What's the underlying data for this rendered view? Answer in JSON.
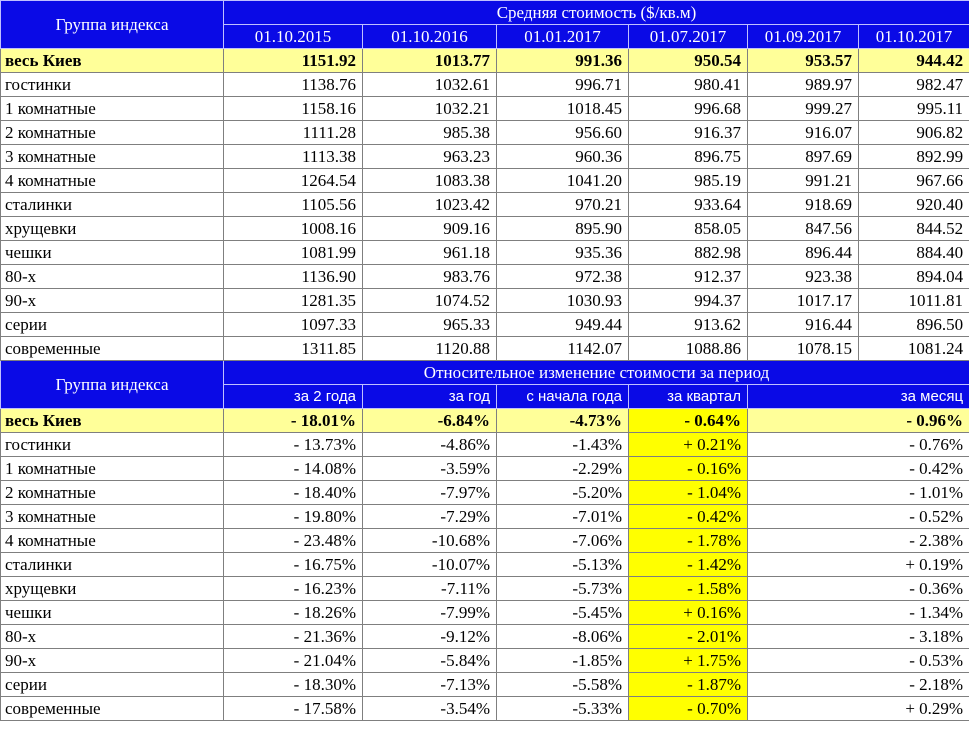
{
  "table1": {
    "group_header": "Группа индекса",
    "section_header": "Средняя стоимость ($/кв.м)",
    "columns": [
      "01.10.2015",
      "01.10.2016",
      "01.01.2017",
      "01.07.2017",
      "01.09.2017",
      "01.10.2017"
    ],
    "rows": [
      {
        "label": "весь Киев",
        "values": [
          "1151.92",
          "1013.77",
          "991.36",
          "950.54",
          "953.57",
          "944.42"
        ]
      },
      {
        "label": "гостинки",
        "values": [
          "1138.76",
          "1032.61",
          "996.71",
          "980.41",
          "989.97",
          "982.47"
        ]
      },
      {
        "label": "1 комнатные",
        "values": [
          "1158.16",
          "1032.21",
          "1018.45",
          "996.68",
          "999.27",
          "995.11"
        ]
      },
      {
        "label": "2 комнатные",
        "values": [
          "1111.28",
          "985.38",
          "956.60",
          "916.37",
          "916.07",
          "906.82"
        ]
      },
      {
        "label": "3 комнатные",
        "values": [
          "1113.38",
          "963.23",
          "960.36",
          "896.75",
          "897.69",
          "892.99"
        ]
      },
      {
        "label": "4 комнатные",
        "values": [
          "1264.54",
          "1083.38",
          "1041.20",
          "985.19",
          "991.21",
          "967.66"
        ]
      },
      {
        "label": "сталинки",
        "values": [
          "1105.56",
          "1023.42",
          "970.21",
          "933.64",
          "918.69",
          "920.40"
        ]
      },
      {
        "label": "хрущевки",
        "values": [
          "1008.16",
          "909.16",
          "895.90",
          "858.05",
          "847.56",
          "844.52"
        ]
      },
      {
        "label": "чешки",
        "values": [
          "1081.99",
          "961.18",
          "935.36",
          "882.98",
          "896.44",
          "884.40"
        ]
      },
      {
        "label": "80-х",
        "values": [
          "1136.90",
          "983.76",
          "972.38",
          "912.37",
          "923.38",
          "894.04"
        ]
      },
      {
        "label": "90-х",
        "values": [
          "1281.35",
          "1074.52",
          "1030.93",
          "994.37",
          "1017.17",
          "1011.81"
        ]
      },
      {
        "label": "серии",
        "values": [
          "1097.33",
          "965.33",
          "949.44",
          "913.62",
          "916.44",
          "896.50"
        ]
      },
      {
        "label": "современные",
        "values": [
          "1311.85",
          "1120.88",
          "1142.07",
          "1088.86",
          "1078.15",
          "1081.24"
        ]
      }
    ]
  },
  "table2": {
    "group_header": "Группа индекса",
    "section_header": "Относительное изменение стоимости за период",
    "columns": [
      "за 2 года",
      "за год",
      "с начала года",
      "за квартал",
      "за месяц"
    ],
    "highlight_color": "#ffff00",
    "rows": [
      {
        "label": "весь Киев",
        "values": [
          "- 18.01%",
          "-6.84%",
          "-4.73%",
          "- 0.64%",
          "- 0.96%"
        ]
      },
      {
        "label": "гостинки",
        "values": [
          "- 13.73%",
          "-4.86%",
          "-1.43%",
          "+ 0.21%",
          "- 0.76%"
        ]
      },
      {
        "label": "1 комнатные",
        "values": [
          "- 14.08%",
          "-3.59%",
          "-2.29%",
          "- 0.16%",
          "- 0.42%"
        ]
      },
      {
        "label": "2 комнатные",
        "values": [
          "- 18.40%",
          "-7.97%",
          "-5.20%",
          "- 1.04%",
          "- 1.01%"
        ]
      },
      {
        "label": "3 комнатные",
        "values": [
          "- 19.80%",
          "-7.29%",
          "-7.01%",
          "- 0.42%",
          "- 0.52%"
        ]
      },
      {
        "label": "4 комнатные",
        "values": [
          "- 23.48%",
          "-10.68%",
          "-7.06%",
          "- 1.78%",
          "- 2.38%"
        ]
      },
      {
        "label": "сталинки",
        "values": [
          "- 16.75%",
          "-10.07%",
          "-5.13%",
          "- 1.42%",
          "+ 0.19%"
        ]
      },
      {
        "label": "хрущевки",
        "values": [
          "- 16.23%",
          "-7.11%",
          "-5.73%",
          "- 1.58%",
          "- 0.36%"
        ]
      },
      {
        "label": "чешки",
        "values": [
          "- 18.26%",
          "-7.99%",
          "-5.45%",
          "+ 0.16%",
          "- 1.34%"
        ]
      },
      {
        "label": "80-х",
        "values": [
          "- 21.36%",
          "-9.12%",
          "-8.06%",
          "- 2.01%",
          "- 3.18%"
        ]
      },
      {
        "label": "90-х",
        "values": [
          "- 21.04%",
          "-5.84%",
          "-1.85%",
          "+ 1.75%",
          "- 0.53%"
        ]
      },
      {
        "label": "серии",
        "values": [
          "- 18.30%",
          "-7.13%",
          "-5.58%",
          "- 1.87%",
          "- 2.18%"
        ]
      },
      {
        "label": "современные",
        "values": [
          "- 17.58%",
          "-3.54%",
          "-5.33%",
          "- 0.70%",
          "+ 0.29%"
        ]
      }
    ]
  }
}
